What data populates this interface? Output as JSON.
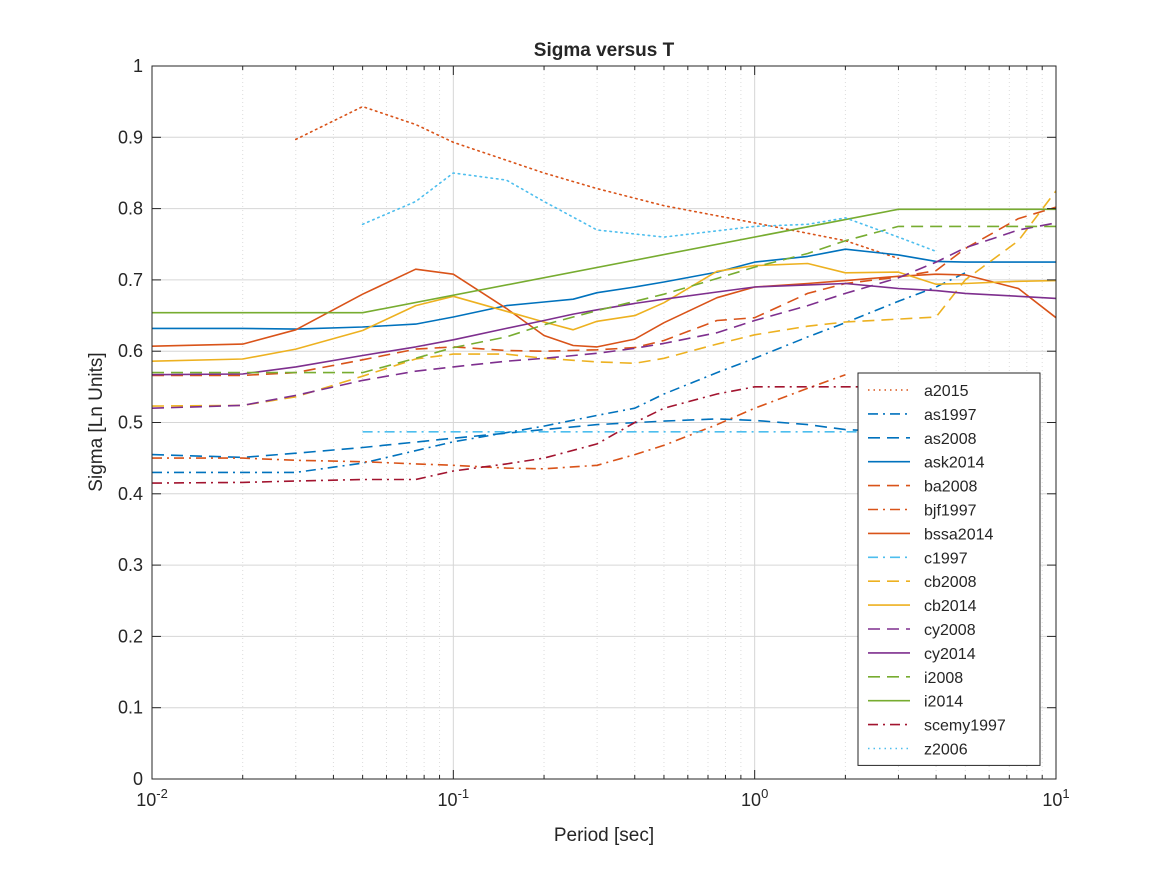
{
  "chart_data": {
    "type": "line",
    "title": "Sigma versus T",
    "xlabel": "Period [sec]",
    "ylabel": "Sigma [Ln Units]",
    "xscale": "log",
    "xlim": [
      0.01,
      10
    ],
    "ylim": [
      0,
      1
    ],
    "grid": true,
    "legend_position": "bottom-right (inside)",
    "x_ticks": [
      {
        "value": 0.01,
        "base": "10",
        "exp": "-2"
      },
      {
        "value": 0.1,
        "base": "10",
        "exp": "-1"
      },
      {
        "value": 1,
        "base": "10",
        "exp": "0"
      },
      {
        "value": 10,
        "base": "10",
        "exp": "1"
      }
    ],
    "y_ticks": [
      "0",
      "0.1",
      "0.2",
      "0.3",
      "0.4",
      "0.5",
      "0.6",
      "0.7",
      "0.8",
      "0.9",
      "1"
    ],
    "series": [
      {
        "name": "a2015",
        "color": "#D95319",
        "style": "dotted",
        "x": [
          0.03,
          0.05,
          0.075,
          0.1,
          0.2,
          0.3,
          0.5,
          1,
          2,
          3
        ],
        "y": [
          0.897,
          0.943,
          0.918,
          0.893,
          0.85,
          0.828,
          0.804,
          0.78,
          0.755,
          0.73
        ]
      },
      {
        "name": "as1997",
        "color": "#0072BD",
        "style": "dashdot",
        "x": [
          0.01,
          0.02,
          0.03,
          0.05,
          0.1,
          0.2,
          0.3,
          0.4,
          0.5,
          0.75,
          1,
          1.5,
          2,
          3,
          4,
          5
        ],
        "y": [
          0.43,
          0.43,
          0.43,
          0.443,
          0.473,
          0.495,
          0.51,
          0.52,
          0.54,
          0.57,
          0.59,
          0.62,
          0.64,
          0.67,
          0.69,
          0.71
        ]
      },
      {
        "name": "as2008",
        "color": "#0072BD",
        "style": "dashed",
        "x": [
          0.01,
          0.02,
          0.03,
          0.05,
          0.1,
          0.2,
          0.3,
          0.5,
          0.75,
          1,
          1.5,
          2,
          3
        ],
        "y": [
          0.455,
          0.451,
          0.457,
          0.465,
          0.478,
          0.49,
          0.497,
          0.502,
          0.505,
          0.503,
          0.497,
          0.49,
          0.487
        ]
      },
      {
        "name": "ask2014",
        "color": "#0072BD",
        "style": "solid",
        "x": [
          0.01,
          0.02,
          0.03,
          0.05,
          0.075,
          0.1,
          0.15,
          0.2,
          0.25,
          0.3,
          0.4,
          0.5,
          0.75,
          1,
          1.5,
          2,
          3,
          4,
          5,
          7.5,
          10
        ],
        "y": [
          0.632,
          0.632,
          0.631,
          0.634,
          0.638,
          0.648,
          0.664,
          0.669,
          0.673,
          0.682,
          0.69,
          0.697,
          0.711,
          0.725,
          0.733,
          0.743,
          0.735,
          0.726,
          0.725,
          0.725,
          0.725
        ]
      },
      {
        "name": "ba2008",
        "color": "#D95319",
        "style": "dashed",
        "x": [
          0.01,
          0.02,
          0.03,
          0.05,
          0.075,
          0.1,
          0.15,
          0.2,
          0.3,
          0.4,
          0.5,
          0.75,
          1,
          1.5,
          2,
          3,
          4,
          5,
          7.5,
          10
        ],
        "y": [
          0.566,
          0.566,
          0.57,
          0.588,
          0.603,
          0.606,
          0.601,
          0.6,
          0.602,
          0.605,
          0.615,
          0.643,
          0.647,
          0.681,
          0.695,
          0.704,
          0.713,
          0.744,
          0.786,
          0.802
        ]
      },
      {
        "name": "bjf1997",
        "color": "#D95319",
        "style": "dashdot",
        "x": [
          0.01,
          0.02,
          0.03,
          0.05,
          0.075,
          0.1,
          0.15,
          0.2,
          0.3,
          0.4,
          0.5,
          0.75,
          1,
          1.5,
          2
        ],
        "y": [
          0.45,
          0.45,
          0.447,
          0.445,
          0.442,
          0.44,
          0.436,
          0.435,
          0.44,
          0.455,
          0.468,
          0.497,
          0.52,
          0.548,
          0.567
        ]
      },
      {
        "name": "bssa2014",
        "color": "#D95319",
        "style": "solid",
        "x": [
          0.01,
          0.02,
          0.03,
          0.05,
          0.075,
          0.1,
          0.15,
          0.2,
          0.25,
          0.3,
          0.4,
          0.5,
          0.75,
          1,
          1.5,
          2,
          3,
          4,
          5,
          7.5,
          10
        ],
        "y": [
          0.607,
          0.61,
          0.63,
          0.68,
          0.715,
          0.708,
          0.66,
          0.622,
          0.608,
          0.606,
          0.617,
          0.64,
          0.675,
          0.69,
          0.695,
          0.699,
          0.705,
          0.708,
          0.707,
          0.688,
          0.647
        ]
      },
      {
        "name": "c1997",
        "color": "#4DBEEE",
        "style": "dashdot",
        "x": [
          0.05,
          0.1,
          0.2,
          0.3,
          0.5,
          1,
          2,
          3
        ],
        "y": [
          0.487,
          0.487,
          0.487,
          0.487,
          0.487,
          0.487,
          0.487,
          0.487
        ]
      },
      {
        "name": "cb2008",
        "color": "#EDB120",
        "style": "dashed",
        "x": [
          0.01,
          0.02,
          0.03,
          0.05,
          0.075,
          0.1,
          0.15,
          0.2,
          0.3,
          0.4,
          0.5,
          0.75,
          1,
          1.5,
          2,
          3,
          4,
          5,
          7.5,
          10
        ],
        "y": [
          0.523,
          0.524,
          0.536,
          0.565,
          0.589,
          0.596,
          0.596,
          0.59,
          0.585,
          0.583,
          0.59,
          0.61,
          0.623,
          0.635,
          0.641,
          0.645,
          0.648,
          0.7,
          0.755,
          0.825
        ]
      },
      {
        "name": "cb2014",
        "color": "#EDB120",
        "style": "solid",
        "x": [
          0.01,
          0.02,
          0.03,
          0.05,
          0.075,
          0.1,
          0.15,
          0.2,
          0.25,
          0.3,
          0.4,
          0.5,
          0.75,
          1,
          1.5,
          2,
          3,
          4,
          5,
          7.5,
          10
        ],
        "y": [
          0.586,
          0.589,
          0.603,
          0.629,
          0.664,
          0.677,
          0.656,
          0.641,
          0.63,
          0.642,
          0.65,
          0.668,
          0.712,
          0.72,
          0.723,
          0.71,
          0.711,
          0.694,
          0.695,
          0.698,
          0.699
        ]
      },
      {
        "name": "cy2008",
        "color": "#7E2F8E",
        "style": "dashed",
        "x": [
          0.01,
          0.02,
          0.03,
          0.05,
          0.075,
          0.1,
          0.15,
          0.2,
          0.3,
          0.4,
          0.5,
          0.75,
          1,
          1.5,
          2,
          3,
          4,
          5,
          7.5,
          10
        ],
        "y": [
          0.52,
          0.524,
          0.538,
          0.559,
          0.572,
          0.578,
          0.586,
          0.59,
          0.597,
          0.604,
          0.611,
          0.626,
          0.643,
          0.664,
          0.681,
          0.703,
          0.725,
          0.745,
          0.77,
          0.78
        ]
      },
      {
        "name": "cy2014",
        "color": "#7E2F8E",
        "style": "solid",
        "x": [
          0.01,
          0.02,
          0.03,
          0.05,
          0.075,
          0.1,
          0.15,
          0.2,
          0.25,
          0.3,
          0.4,
          0.5,
          0.75,
          1,
          1.5,
          2,
          3,
          4,
          5,
          7.5,
          10
        ],
        "y": [
          0.567,
          0.568,
          0.578,
          0.594,
          0.606,
          0.616,
          0.632,
          0.643,
          0.652,
          0.658,
          0.667,
          0.673,
          0.683,
          0.69,
          0.693,
          0.695,
          0.688,
          0.685,
          0.681,
          0.677,
          0.674
        ]
      },
      {
        "name": "i2008",
        "color": "#77AC30",
        "style": "dashed",
        "x": [
          0.01,
          0.02,
          0.03,
          0.05,
          0.075,
          0.1,
          0.15,
          0.2,
          0.3,
          0.5,
          0.75,
          1,
          1.5,
          2,
          3,
          5,
          10
        ],
        "y": [
          0.57,
          0.57,
          0.57,
          0.57,
          0.59,
          0.605,
          0.62,
          0.637,
          0.657,
          0.68,
          0.702,
          0.718,
          0.737,
          0.755,
          0.775,
          0.775,
          0.775
        ]
      },
      {
        "name": "i2014",
        "color": "#77AC30",
        "style": "solid",
        "x": [
          0.01,
          0.02,
          0.03,
          0.05,
          3,
          5,
          10
        ],
        "y": [
          0.654,
          0.654,
          0.654,
          0.654,
          0.799,
          0.799,
          0.799
        ]
      },
      {
        "name": "scemy1997",
        "color": "#A2142F",
        "style": "dashdot",
        "x": [
          0.01,
          0.02,
          0.03,
          0.05,
          0.075,
          0.1,
          0.15,
          0.2,
          0.3,
          0.4,
          0.5,
          0.75,
          1,
          1.5,
          2,
          3
        ],
        "y": [
          0.415,
          0.416,
          0.418,
          0.42,
          0.42,
          0.432,
          0.442,
          0.45,
          0.47,
          0.5,
          0.52,
          0.54,
          0.55,
          0.55,
          0.55,
          0.55
        ]
      },
      {
        "name": "z2006",
        "color": "#4DBEEE",
        "style": "dotted",
        "x": [
          0.05,
          0.075,
          0.1,
          0.15,
          0.2,
          0.3,
          0.5,
          1,
          1.5,
          2,
          3,
          4
        ],
        "y": [
          0.778,
          0.81,
          0.85,
          0.84,
          0.81,
          0.77,
          0.76,
          0.775,
          0.778,
          0.787,
          0.76,
          0.74
        ]
      }
    ]
  }
}
